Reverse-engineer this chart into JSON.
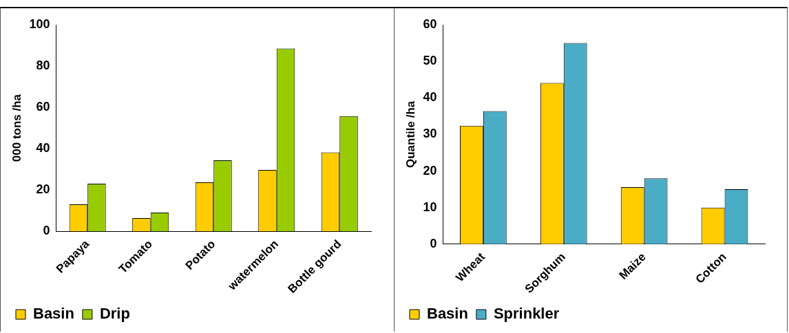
{
  "chart_data": [
    {
      "type": "bar",
      "ylabel": "000 tons /ha",
      "categories": [
        "Papaya",
        "Tomato",
        "Potato",
        "watermelon",
        "Bottle gourd"
      ],
      "series": [
        {
          "name": "Basin",
          "color": "#ffcc00",
          "values": [
            13,
            6.4,
            23.7,
            29.7,
            38.2
          ]
        },
        {
          "name": "Drip",
          "color": "#99cc00",
          "values": [
            23,
            9,
            34.4,
            88.5,
            55.8
          ]
        }
      ],
      "ylim": [
        0,
        100
      ],
      "yticks": [
        0,
        20,
        40,
        60,
        80,
        100
      ],
      "grid": false,
      "legend": "bottom left"
    },
    {
      "type": "bar",
      "ylabel": "Quantile /ha",
      "categories": [
        "Wheat",
        "Sorghum",
        "Maize",
        "Cotton"
      ],
      "series": [
        {
          "name": "Basin",
          "color": "#ffcc00",
          "values": [
            32.4,
            44.1,
            15.6,
            10
          ]
        },
        {
          "name": "Sprinkler",
          "color": "#4bacc6",
          "values": [
            36.4,
            55,
            18,
            15
          ]
        }
      ],
      "ylim": [
        0,
        60
      ],
      "yticks": [
        0,
        10,
        20,
        30,
        40,
        50,
        60
      ],
      "grid": false,
      "legend": "bottom left"
    }
  ]
}
